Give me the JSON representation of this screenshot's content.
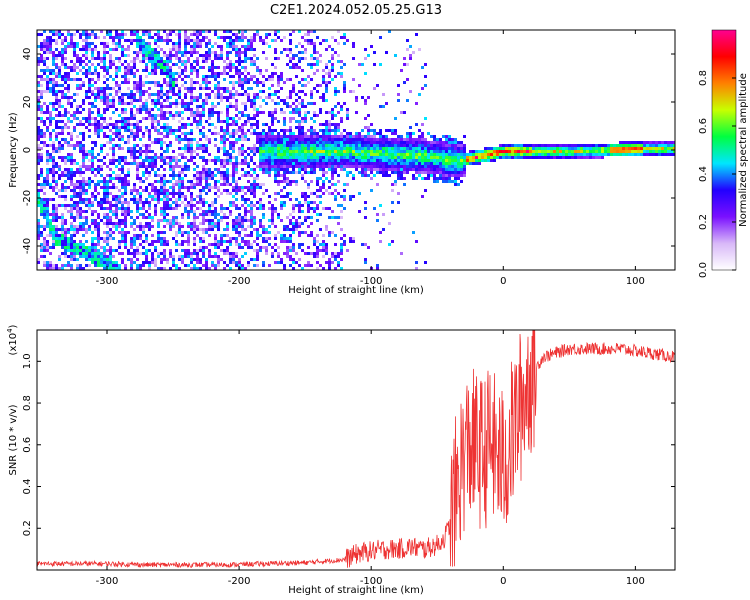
{
  "title": "C2E1.2024.052.05.25.G13",
  "chart_data": [
    {
      "type": "heatmap",
      "xlabel": "Height of straight line (km)",
      "ylabel": "Frequency (Hz)",
      "xlim": [
        -353,
        130
      ],
      "ylim": [
        -50,
        50
      ],
      "xticks": [
        -300,
        -200,
        -100,
        0,
        100
      ],
      "yticks": [
        -40,
        -20,
        0,
        20,
        40
      ],
      "colorbar": {
        "label": "Normalized spectral amplitude",
        "range": [
          0,
          1
        ],
        "ticks": [
          "0.0",
          "0.2",
          "0.4",
          "0.6",
          "0.8"
        ],
        "colors": [
          "#ffffff",
          "#d8b8f8",
          "#7a10ff",
          "#2200ff",
          "#00e6ff",
          "#00ff40",
          "#c8ff00",
          "#ff8000",
          "#ff0000",
          "#ff0090"
        ]
      },
      "features": [
        {
          "description": "dominant narrow band near 0 Hz",
          "x": [
            -185,
            -120,
            -60,
            -35,
            0,
            50,
            100,
            130
          ],
          "y": [
            0,
            0,
            -2,
            -4,
            0,
            0,
            1,
            1
          ]
        },
        {
          "description": "upper-left diagonal band",
          "x": [
            -280,
            -250
          ],
          "y": [
            48,
            30
          ]
        },
        {
          "description": "lower-left diagonal band",
          "x": [
            -353,
            -340,
            -290
          ],
          "y": [
            -20,
            -36,
            -50
          ]
        }
      ]
    },
    {
      "type": "line",
      "xlabel": "Height of straight line (km)",
      "ylabel": "SNR (10 * v/v)",
      "yscale_label": "(x10",
      "yscale_exp": "4",
      "yscale_close": ")",
      "xlim": [
        -353,
        130
      ],
      "ylim": [
        0,
        1.15
      ],
      "xticks": [
        -300,
        -200,
        -100,
        0,
        100
      ],
      "yticks": [
        "0.2",
        "0.4",
        "0.6",
        "0.8",
        "1.0"
      ],
      "color": "#ee3333",
      "series": [
        {
          "x": [
            -353,
            -330,
            -300,
            -270,
            -240,
            -210,
            -180,
            -150,
            -120,
            -110,
            -100,
            -90,
            -80,
            -70,
            -60,
            -50,
            -45,
            -40,
            -35,
            -30,
            -25,
            -20,
            -15,
            -10,
            -5,
            0,
            5,
            10,
            15,
            20,
            30,
            50,
            70,
            90,
            100,
            110,
            120,
            130
          ],
          "y": [
            0.03,
            0.03,
            0.03,
            0.025,
            0.025,
            0.025,
            0.03,
            0.035,
            0.05,
            0.08,
            0.09,
            0.1,
            0.1,
            0.11,
            0.1,
            0.12,
            0.15,
            0.22,
            0.4,
            0.55,
            0.6,
            0.58,
            0.55,
            0.62,
            0.55,
            0.5,
            0.6,
            0.72,
            0.82,
            0.92,
            1.02,
            1.06,
            1.06,
            1.06,
            1.05,
            1.04,
            1.03,
            1.02
          ]
        }
      ]
    }
  ]
}
